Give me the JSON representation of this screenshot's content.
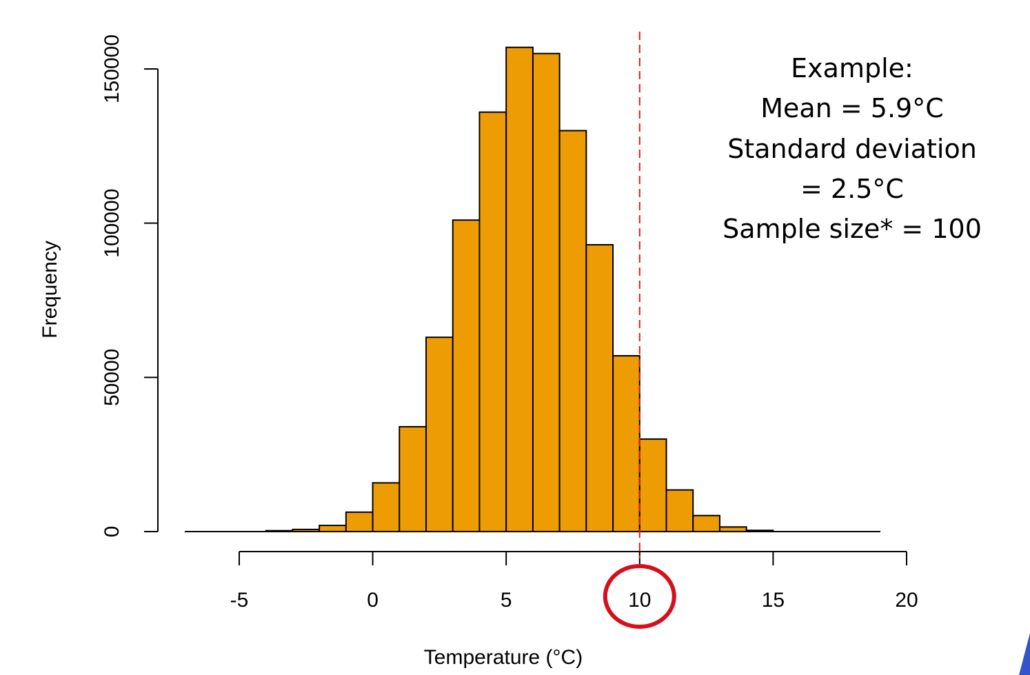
{
  "chart_data": {
    "type": "bar",
    "xlabel": "Temperature (°C)",
    "ylabel": "Frequency",
    "xlim": [
      -5,
      20
    ],
    "ylim": [
      0,
      150000
    ],
    "x_ticks": [
      "-5",
      "0",
      "5",
      "10",
      "15",
      "20"
    ],
    "y_ticks": [
      "0",
      "50000",
      "100000",
      "150000"
    ],
    "bin_edges": [
      -4,
      -3,
      -2,
      -1,
      0,
      1,
      2,
      3,
      4,
      5,
      6,
      7,
      8,
      9,
      10,
      11,
      12,
      13,
      14,
      15
    ],
    "values": [
      300,
      700,
      2000,
      6300,
      15800,
      34000,
      63000,
      101000,
      136000,
      157000,
      155000,
      130000,
      93000,
      57000,
      30000,
      13500,
      5200,
      1500,
      400
    ],
    "bar_color": "#EE9C03",
    "reference_line": {
      "x": 10,
      "color": "#E31B23",
      "style": "dashed"
    },
    "highlight_circle": {
      "x_tick": "10",
      "color": "#D5101E"
    },
    "annotation_lines": [
      "Example:",
      "Mean = 5.9°C",
      "Standard deviation",
      "= 2.5°C",
      "Sample size* = 100"
    ]
  }
}
